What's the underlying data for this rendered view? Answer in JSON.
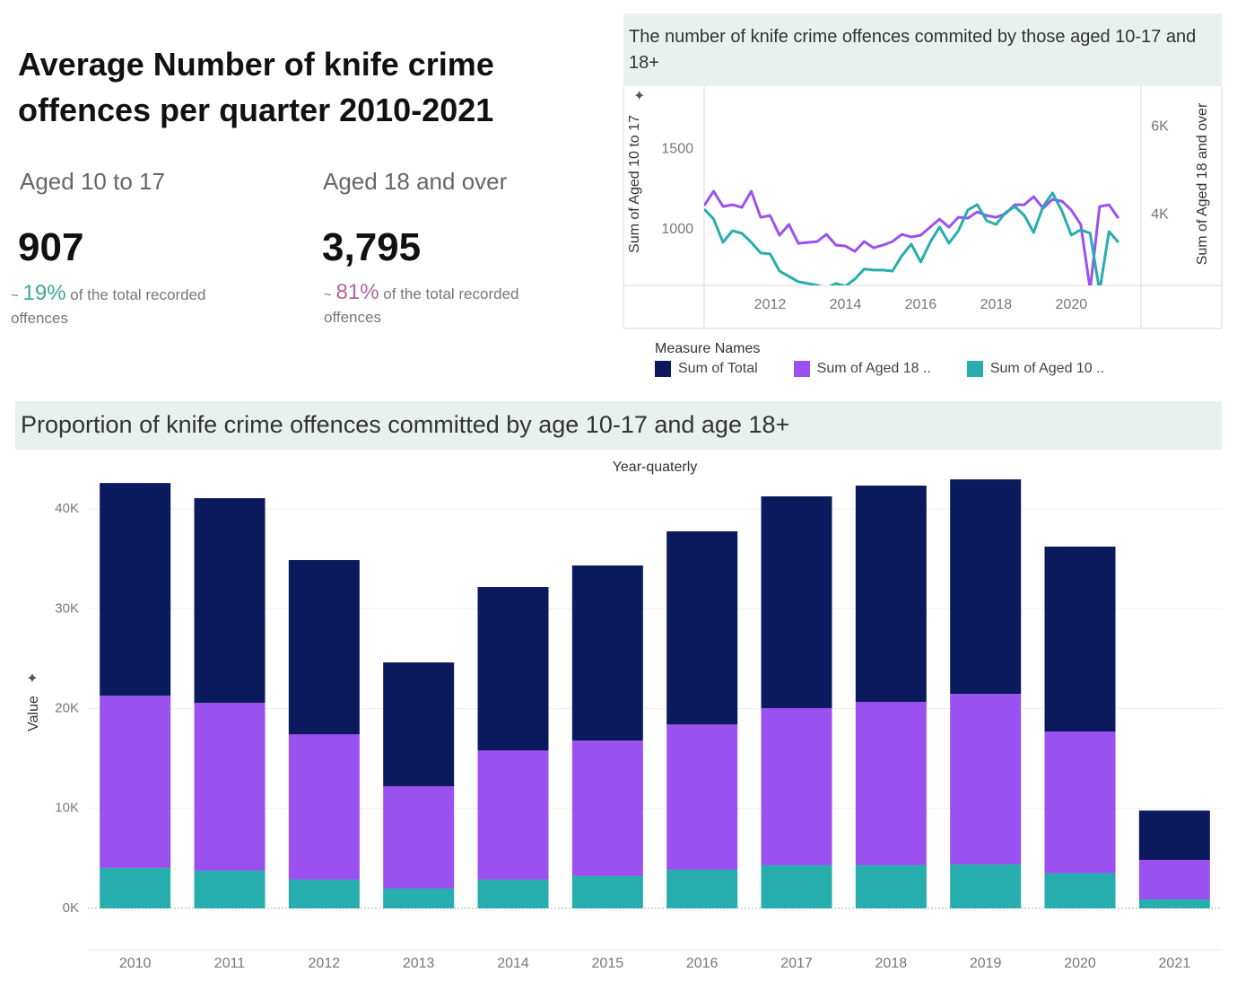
{
  "header": {
    "title": "Average Number of knife crime offences per quarter 2010-2021"
  },
  "kpis": [
    {
      "label": "Aged 10 to 17",
      "value": "907",
      "prefix": "~",
      "share": "19%",
      "note": "of the total recorded offences",
      "color": "#3aa89b"
    },
    {
      "label": "Aged 18 and over",
      "value": "3,795",
      "prefix": "~",
      "share": "81%",
      "note": "of the total recorded offences",
      "color": "#b0649b"
    }
  ],
  "chart_data": [
    {
      "type": "line",
      "title": "The number of knife crime offences commited by those aged 10-17 and 18+",
      "ylabel": "Sum of Aged 10 to 17",
      "y2label": "Sum of Aged 18 and over",
      "x": [
        2010.25,
        2010.5,
        2010.75,
        2011,
        2011.25,
        2011.5,
        2011.75,
        2012,
        2012.25,
        2012.5,
        2012.75,
        2013,
        2013.25,
        2013.5,
        2013.75,
        2014,
        2014.25,
        2014.5,
        2014.75,
        2015,
        2015.25,
        2015.5,
        2015.75,
        2016,
        2016.25,
        2016.5,
        2016.75,
        2017,
        2017.25,
        2017.5,
        2017.75,
        2018,
        2018.25,
        2018.5,
        2018.75,
        2019,
        2019.25,
        2019.5,
        2019.75,
        2020,
        2020.25,
        2020.5,
        2020.75,
        2021,
        2021.25
      ],
      "xlim": [
        2010.25,
        2021.85
      ],
      "xticks": [
        2012,
        2014,
        2016,
        2018,
        2020
      ],
      "ylim": [
        655,
        1890
      ],
      "yticks": [
        1000,
        1500
      ],
      "y2lim": [
        2390,
        6920
      ],
      "y2ticks": [
        {
          "value": 4000,
          "label": "4K"
        },
        {
          "value": 6000,
          "label": "6K"
        }
      ],
      "grid": false,
      "series": [
        {
          "color": "#9b51f0",
          "axis": "y2",
          "values": [
            4204,
            4531,
            4184,
            4224,
            4163,
            4531,
            3939,
            3980,
            3531,
            3776,
            3347,
            3367,
            3388,
            3551,
            3306,
            3286,
            3163,
            3388,
            3245,
            3306,
            3388,
            3551,
            3490,
            3531,
            3714,
            3898,
            3714,
            3939,
            3918,
            4061,
            3980,
            3939,
            4020,
            4224,
            4224,
            4408,
            4143,
            4347,
            4306,
            4102,
            3776,
            2300,
            4184,
            4224,
            3918
          ]
        },
        {
          "color": "#27adad",
          "values": [
            1128,
            1067,
            922,
            994,
            978,
            922,
            856,
            850,
            744,
            711,
            678,
            667,
            656,
            640,
            667,
            650,
            694,
            756,
            750,
            750,
            744,
            839,
            911,
            800,
            922,
            1017,
            917,
            994,
            1122,
            1156,
            1056,
            1033,
            1106,
            1144,
            1089,
            983,
            1144,
            1228,
            1117,
            967,
            1000,
            978,
            620,
            989,
            922
          ]
        }
      ]
    },
    {
      "type": "bar",
      "stacked": true,
      "title": "Proportion of knife crime offences committed by age 10-17 and age 18+",
      "xlabel": "Year-quaterly",
      "ylabel": "Value",
      "legend_title": "Measure Names",
      "categories": [
        "2010",
        "2011",
        "2012",
        "2013",
        "2014",
        "2015",
        "2016",
        "2017",
        "2018",
        "2019",
        "2020",
        "2021"
      ],
      "ylim": [
        0,
        44500
      ],
      "yticks": [
        {
          "value": 0,
          "label": "0K"
        },
        {
          "value": 10000,
          "label": "10K"
        },
        {
          "value": 20000,
          "label": "20K"
        },
        {
          "value": 30000,
          "label": "30K"
        },
        {
          "value": 40000,
          "label": "40K"
        }
      ],
      "grid": true,
      "series": [
        {
          "name": "Sum of Aged 10 ..",
          "color": "#27adad",
          "values": [
            4050,
            3780,
            2880,
            1980,
            2880,
            3240,
            3870,
            4320,
            4320,
            4400,
            3510,
            900
          ]
        },
        {
          "name": "Sum of Aged 18 ..",
          "color": "#9b51f0",
          "values": [
            17250,
            16800,
            14560,
            10250,
            12940,
            13570,
            14560,
            15730,
            16360,
            17080,
            14200,
            3950
          ]
        },
        {
          "name": "Sum of Total",
          "color": "#0b1a5c",
          "values": [
            21300,
            20500,
            17440,
            12400,
            16360,
            17530,
            19330,
            21210,
            21660,
            21480,
            18520,
            4940
          ]
        }
      ]
    }
  ]
}
